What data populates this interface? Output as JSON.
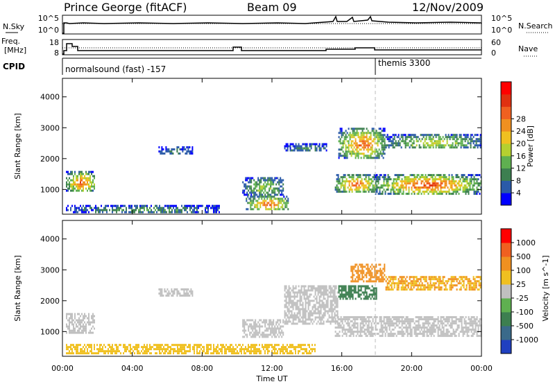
{
  "header": {
    "title": "Prince George (fitACF)",
    "beam": "Beam 09",
    "date": "12/Nov/2009"
  },
  "noise_panel": {
    "left_label": "N.Sky",
    "left_ticks": [
      "10^5",
      "10^0"
    ],
    "right_ticks": [
      "10^5",
      "10^0"
    ],
    "right_label": "N.Search"
  },
  "freq_panel": {
    "left_label_1": "Freq.",
    "left_label_2": "[MHz]",
    "left_ticks": [
      "18",
      "8"
    ],
    "right_ticks": [
      "60",
      "0"
    ],
    "right_label": "Nave"
  },
  "cpid": {
    "label": "CPID",
    "mode_1": "normalsound (fast) -157",
    "mode_2": "themis 3300"
  },
  "chart_data": [
    {
      "type": "heatmap",
      "quantity": "Power",
      "ylabel": "Slant Range [km]",
      "colorbar_label": "Power [dB]",
      "colorbar_ticks": [
        "4",
        "8",
        "12",
        "16",
        "20",
        "24",
        "28"
      ],
      "colorbar_colors": [
        "#0000ff",
        "#2a5aa8",
        "#3d7f50",
        "#5fb050",
        "#b5d030",
        "#f0c020",
        "#f09020",
        "#f06020",
        "#e03010",
        "#ff0000"
      ],
      "ylim": [
        200,
        4600
      ],
      "yticks": [
        "1000",
        "2000",
        "3000",
        "4000"
      ],
      "xlim": [
        "00:00",
        "24:00"
      ],
      "echo_regions": [
        {
          "t_start": 0.2,
          "t_end": 1.9,
          "range_start": 900,
          "range_end": 1600,
          "peak_db": 24
        },
        {
          "t_start": 0.2,
          "t_end": 9.0,
          "range_start": 250,
          "range_end": 500,
          "peak_db": 10
        },
        {
          "t_start": 5.5,
          "t_end": 7.5,
          "range_start": 2100,
          "range_end": 2400,
          "peak_db": 8
        },
        {
          "t_start": 10.3,
          "t_end": 12.7,
          "range_start": 800,
          "range_end": 1400,
          "peak_db": 14
        },
        {
          "t_start": 10.5,
          "t_end": 13.0,
          "range_start": 300,
          "range_end": 800,
          "peak_db": 24
        },
        {
          "t_start": 12.7,
          "t_end": 15.2,
          "range_start": 2200,
          "range_end": 2500,
          "peak_db": 8
        },
        {
          "t_start": 15.6,
          "t_end": 18.0,
          "range_start": 900,
          "range_end": 1500,
          "peak_db": 24
        },
        {
          "t_start": 15.8,
          "t_end": 18.5,
          "range_start": 2000,
          "range_end": 3000,
          "peak_db": 24
        },
        {
          "t_start": 17.9,
          "t_end": 24.0,
          "range_start": 850,
          "range_end": 1500,
          "peak_db": 26
        },
        {
          "t_start": 18.5,
          "t_end": 24.0,
          "range_start": 2300,
          "range_end": 2800,
          "peak_db": 16
        }
      ]
    },
    {
      "type": "heatmap",
      "quantity": "Velocity",
      "ylabel": "Slant Range [km]",
      "colorbar_label": "Velocity [m s^-1]",
      "colorbar_ticks": [
        "1000",
        "500",
        "100",
        "25",
        "-25",
        "-100",
        "-500",
        "-1000"
      ],
      "colorbar_colors": [
        "#2040c0",
        "#3a6a8a",
        "#3d7f50",
        "#5fb050",
        "#c0c0c0",
        "#f0c020",
        "#f09020",
        "#f06020",
        "#ff0000"
      ],
      "ylim": [
        200,
        4600
      ],
      "yticks": [
        "1000",
        "2000",
        "3000",
        "4000"
      ],
      "xlim": [
        "00:00",
        "24:00"
      ],
      "xticks": [
        "00:00",
        "04:00",
        "08:00",
        "12:00",
        "16:00",
        "20:00",
        "00:00"
      ],
      "xlabel": "Time UT",
      "echo_regions": [
        {
          "t_start": 0.2,
          "t_end": 1.9,
          "range_start": 900,
          "range_end": 1600,
          "velocity": 0
        },
        {
          "t_start": 0.2,
          "t_end": 14.5,
          "range_start": 250,
          "range_end": 600,
          "velocity": -50
        },
        {
          "t_start": 5.5,
          "t_end": 7.5,
          "range_start": 2100,
          "range_end": 2400,
          "velocity": 0
        },
        {
          "t_start": 10.3,
          "t_end": 12.7,
          "range_start": 800,
          "range_end": 1400,
          "velocity": 0
        },
        {
          "t_start": 12.7,
          "t_end": 15.8,
          "range_start": 1200,
          "range_end": 2500,
          "velocity": 0
        },
        {
          "t_start": 15.6,
          "t_end": 24.0,
          "range_start": 850,
          "range_end": 1500,
          "velocity": 0
        },
        {
          "t_start": 15.8,
          "t_end": 18.0,
          "range_start": 2000,
          "range_end": 2500,
          "velocity": 200
        },
        {
          "t_start": 16.5,
          "t_end": 18.5,
          "range_start": 2600,
          "range_end": 3200,
          "velocity": -300
        },
        {
          "t_start": 18.5,
          "t_end": 24.0,
          "range_start": 2300,
          "range_end": 2800,
          "velocity": -100
        }
      ]
    }
  ]
}
